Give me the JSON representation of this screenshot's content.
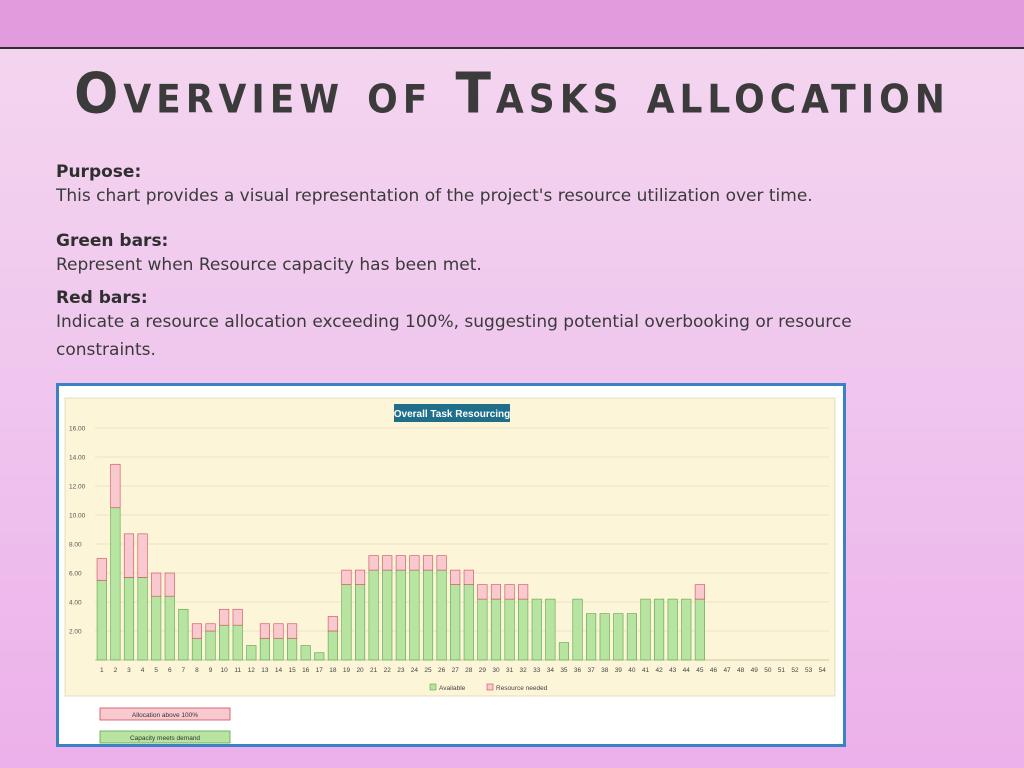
{
  "page": {
    "title": "Overview of Tasks allocation",
    "purpose_heading": "Purpose:",
    "purpose_text": "This chart provides a visual representation of the project's resource utilization over time.",
    "green_heading": "Green bars:",
    "green_text": "Represent when Resource capacity has been met.",
    "red_heading": "Red bars:",
    "red_text_line1": "Indicate a resource allocation exceeding 100%, suggesting potential overbooking or resource",
    "red_text_line2": "constraints."
  },
  "colors": {
    "available_fill": "#b7e4a0",
    "available_stroke": "#5aa24a",
    "needed_fill": "#f8c9cf",
    "needed_stroke": "#d04a5a",
    "plot_bg": "#fdf5d8",
    "title_bg": "#1f6f8b"
  },
  "legend_boxes": {
    "over": "Allocation above 100%",
    "meets": "Capacity meets demand"
  },
  "chart_data": {
    "type": "bar",
    "title": "Overall Task Resourcing",
    "xlabel": "",
    "ylabel": "",
    "ylim": [
      0,
      16
    ],
    "yticks": [
      "2.00",
      "4.00",
      "6.00",
      "8.00",
      "10.00",
      "12.00",
      "14.00",
      "16.00"
    ],
    "ytick_values": [
      2,
      4,
      6,
      8,
      10,
      12,
      14,
      16
    ],
    "stacked": true,
    "grid": true,
    "legend_position": "bottom",
    "categories": [
      "1",
      "2",
      "3",
      "4",
      "5",
      "6",
      "7",
      "8",
      "9",
      "10",
      "11",
      "12",
      "13",
      "14",
      "15",
      "16",
      "17",
      "18",
      "19",
      "20",
      "21",
      "22",
      "23",
      "24",
      "25",
      "26",
      "27",
      "28",
      "29",
      "30",
      "31",
      "32",
      "33",
      "34",
      "35",
      "36",
      "37",
      "38",
      "39",
      "40",
      "41",
      "42",
      "43",
      "44",
      "45",
      "46",
      "47",
      "48",
      "49",
      "50",
      "51",
      "52",
      "53",
      "54"
    ],
    "series": [
      {
        "name": "Available",
        "values": [
          5.5,
          10.5,
          5.7,
          5.7,
          4.4,
          4.4,
          3.5,
          1.5,
          2.0,
          2.4,
          2.4,
          1.0,
          1.5,
          1.5,
          1.5,
          1.0,
          0.5,
          2.0,
          5.2,
          5.2,
          6.2,
          6.2,
          6.2,
          6.2,
          6.2,
          6.2,
          5.2,
          5.2,
          4.2,
          4.2,
          4.2,
          4.2,
          4.2,
          4.2,
          1.2,
          4.2,
          3.2,
          3.2,
          3.2,
          3.2,
          4.2,
          4.2,
          4.2,
          4.2,
          4.2,
          0,
          0,
          0,
          0,
          0,
          0,
          0,
          0,
          0
        ]
      },
      {
        "name": "Resource needed",
        "values": [
          1.5,
          3.0,
          3.0,
          3.0,
          1.6,
          1.6,
          0,
          1.0,
          0.5,
          1.1,
          1.1,
          0,
          1.0,
          1.0,
          1.0,
          0,
          0,
          1.0,
          1.0,
          1.0,
          1.0,
          1.0,
          1.0,
          1.0,
          1.0,
          1.0,
          1.0,
          1.0,
          1.0,
          1.0,
          1.0,
          1.0,
          0,
          0,
          0,
          0,
          0,
          0,
          0,
          0,
          0,
          0,
          0,
          0,
          1.0,
          0,
          0,
          0,
          0,
          0,
          0,
          0,
          0,
          0
        ]
      }
    ]
  }
}
